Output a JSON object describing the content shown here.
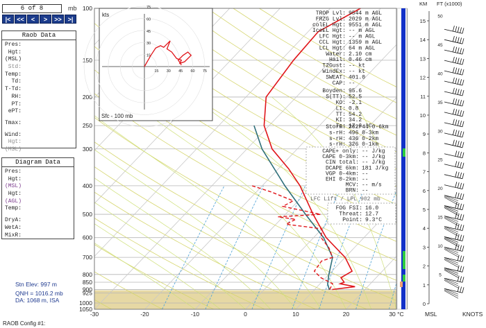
{
  "nav": {
    "page_indicator": "6 of 8",
    "unit_label": "mb",
    "buttons": [
      {
        "label": "|<"
      },
      {
        "label": "<<"
      },
      {
        "label": "<"
      },
      {
        "label": ">"
      },
      {
        "label": ">>"
      },
      {
        "label": ">|"
      }
    ]
  },
  "raob_panel": {
    "title": "Raob Data",
    "rows": [
      {
        "label": "Pres:",
        "style": "normal"
      },
      {
        "label": " Hgt:",
        "style": "normal"
      },
      {
        "label": "(MSL)",
        "style": "normal"
      },
      {
        "label": " Std:",
        "style": "gray"
      },
      {
        "label": "Temp:",
        "style": "normal"
      },
      {
        "label": "  Td:",
        "style": "normal"
      },
      {
        "label": "T-Td:",
        "style": "normal"
      },
      {
        "label": "  RH:",
        "style": "normal"
      },
      {
        "label": "  PT:",
        "style": "normal"
      },
      {
        "label": " ePT:",
        "style": "normal"
      },
      {
        "label": "",
        "style": "gap"
      },
      {
        "label": "Tmax:",
        "style": "normal"
      },
      {
        "label": "",
        "style": "gap"
      },
      {
        "label": "Wind:",
        "style": "normal"
      },
      {
        "label": " Hgt:",
        "style": "gray"
      },
      {
        "label": "(MSL)",
        "style": "gray"
      }
    ]
  },
  "diagram_panel": {
    "title": "Diagram Data",
    "rows": [
      {
        "label": "Pres:",
        "style": "normal"
      },
      {
        "label": " Hgt:",
        "style": "normal"
      },
      {
        "label": "(MSL)",
        "style": "purple"
      },
      {
        "label": " Hgt:",
        "style": "normal"
      },
      {
        "label": "(AGL)",
        "style": "purple"
      },
      {
        "label": "Temp:",
        "style": "normal"
      },
      {
        "label": "",
        "style": "gap"
      },
      {
        "label": "DryA:",
        "style": "normal"
      },
      {
        "label": "WetA:",
        "style": "normal"
      },
      {
        "label": "MixR:",
        "style": "normal"
      }
    ]
  },
  "station": {
    "elevation": "Stn Elev: 997 m",
    "qnh": "QNH = 1016.2 mb",
    "da": "DA: 1068 m, ISA"
  },
  "config_label": "RAOB Config #1:",
  "chart_data": {
    "type": "line",
    "title": "",
    "xlabel": "",
    "ylabel": "",
    "x_unit_tick": "30 °C",
    "pressure_ticks": [
      100,
      150,
      200,
      250,
      300,
      400,
      500,
      600,
      700,
      800,
      850,
      900,
      925,
      1000,
      1050
    ],
    "temperature_ticks": [
      -30,
      -20,
      -10,
      0,
      10,
      20,
      30
    ],
    "xlim": [
      -30,
      30
    ],
    "ylim": [
      1050,
      100
    ],
    "skew_note": "isotherms skewed to the right",
    "temperature_profile": {
      "name": "Temperature",
      "color": "#e0151a",
      "points": [
        [
          900,
          13.5
        ],
        [
          880,
          17.5
        ],
        [
          860,
          14.0
        ],
        [
          850,
          14.5
        ],
        [
          820,
          13.0
        ],
        [
          780,
          14.0
        ],
        [
          700,
          10.0
        ],
        [
          600,
          2.5
        ],
        [
          500,
          -4.5
        ],
        [
          400,
          -12.5
        ],
        [
          350,
          -18.0
        ],
        [
          300,
          -25.0
        ],
        [
          250,
          -31.0
        ],
        [
          200,
          -36.0
        ],
        [
          150,
          -37.5
        ],
        [
          120,
          -38.0
        ],
        [
          100,
          -34.0
        ]
      ]
    },
    "dewpoint_profile": {
      "name": "Dewpoint",
      "color": "#e0151a",
      "dashed": true,
      "points": [
        [
          900,
          13.0
        ],
        [
          860,
          12.5
        ],
        [
          820,
          9.0
        ],
        [
          780,
          6.5
        ],
        [
          720,
          6.0
        ],
        [
          700,
          7.5
        ],
        [
          650,
          5.0
        ],
        [
          600,
          1.5
        ],
        [
          560,
          0.0
        ],
        [
          540,
          -8.0
        ],
        [
          520,
          -7.0
        ],
        [
          510,
          -11.0
        ],
        [
          500,
          -3.0
        ],
        [
          470,
          -12.0
        ],
        [
          450,
          -11.0
        ],
        [
          420,
          -17.0
        ],
        [
          400,
          -22.0
        ]
      ]
    },
    "parcel_profile": {
      "name": "Parcel",
      "color": "#2f6f7a",
      "points": [
        [
          902,
          13.0
        ],
        [
          860,
          11.5
        ],
        [
          800,
          10.0
        ],
        [
          700,
          7.5
        ],
        [
          600,
          2.0
        ],
        [
          500,
          -6.0
        ],
        [
          400,
          -15.5
        ],
        [
          300,
          -27.0
        ],
        [
          250,
          -33.0
        ]
      ]
    },
    "annotations": [
      {
        "text": "m",
        "pressure": 355,
        "temp": -10,
        "color": "#e0151a"
      }
    ],
    "hodograph": {
      "unit_label": "kts",
      "footer": "Sfc - 100 mb",
      "y_ticks": [
        "75",
        "60",
        "45",
        "30",
        "15"
      ],
      "x_ticks": [
        "15",
        "30",
        "45",
        "60",
        "75"
      ],
      "trace": [
        [
          0,
          0
        ],
        [
          8,
          14
        ],
        [
          14,
          23
        ],
        [
          20,
          26
        ],
        [
          24,
          24
        ],
        [
          30,
          30
        ],
        [
          32,
          32
        ],
        [
          28,
          22
        ],
        [
          34,
          18
        ],
        [
          40,
          10
        ],
        [
          46,
          8
        ],
        [
          44,
          4
        ],
        [
          50,
          6
        ],
        [
          56,
          12
        ],
        [
          58,
          14
        ],
        [
          54,
          18
        ],
        [
          48,
          14
        ],
        [
          42,
          8
        ],
        [
          46,
          2
        ]
      ]
    },
    "indices": [
      {
        "label": "TROP Lvl:",
        "value": "9544 m AGL"
      },
      {
        "label": "FRZG Lvl:",
        "value": "2029 m AGL"
      },
      {
        "label": "colEL Hgt:",
        "value": "9551 m AGL"
      },
      {
        "label": "IceEL Hgt:",
        "value": "-- m AGL"
      },
      {
        "label": "LFC Hgt:",
        "value": "-- m AGL"
      },
      {
        "label": "CCL Hgt:",
        "value": "1359 m AGL"
      },
      {
        "label": "LCL Hgt:",
        "value": "64 m AGL"
      },
      {
        "label": "Water:",
        "value": "2.10 cm"
      },
      {
        "label": "Hail:",
        "value": "0.46 cm"
      },
      {
        "label": "T2Gust:",
        "value": "-- kt"
      },
      {
        "label": "WindEx:",
        "value": "-- kt"
      },
      {
        "label": "SWEAT:",
        "value": "401.0"
      },
      {
        "label": "CAP:",
        "value": "--"
      },
      {
        "label": "Boyden:",
        "value": "95.6"
      },
      {
        "label": "S(TT):",
        "value": "52.5"
      },
      {
        "label": "KO:",
        "value": "-2.1"
      },
      {
        "label": "LI:",
        "value": "0.8"
      },
      {
        "label": "TT:",
        "value": "54.2"
      },
      {
        "label": "KI:",
        "value": "34.2"
      },
      {
        "label": "Tc:",
        "value": "17.6 °C"
      }
    ],
    "storm_indices": [
      {
        "label": "Storm:",
        "value": "262/44 0-6km"
      },
      {
        "label": "s-rH:",
        "value": "496 0-3km"
      },
      {
        "label": "s-rH:",
        "value": "436 0-2km"
      },
      {
        "label": "s-rH:",
        "value": "326 0-1km"
      }
    ],
    "cape_indices": [
      {
        "label": "CAPE+ only:",
        "value": "-- J/kg"
      },
      {
        "label": "CAPE 0-3km:",
        "value": "-- J/kg"
      },
      {
        "label": "CIN total:",
        "value": "-- J/kg"
      },
      {
        "label": "DCAPE 6km:",
        "value": "181 J/kg"
      },
      {
        "label": "VGP 0-4km:",
        "value": "--"
      },
      {
        "label": "EHI 0-2km:",
        "value": "--"
      },
      {
        "label": "MCV:",
        "value": "-- m/s"
      },
      {
        "label": "BRN:",
        "value": "--"
      }
    ],
    "lift_label": "LFC Lift / LPL 902 mb",
    "fog": [
      {
        "label": "FOG FSI:",
        "value": "16.0"
      },
      {
        "label": "Threat:",
        "value": "12.7"
      },
      {
        "label": "Point:",
        "value": "9.3°C"
      }
    ],
    "height_scale": {
      "km_label": "KM",
      "ft_label": "FT (x1000)",
      "km_ticks": [
        0,
        1,
        2,
        3,
        4,
        5,
        6,
        7,
        8,
        9,
        10,
        11,
        12,
        13,
        14,
        15
      ],
      "ft_ticks": [
        5,
        10,
        15,
        20,
        25,
        30,
        35,
        40,
        45,
        50
      ]
    },
    "wind_profile_labels": {
      "msl": "MSL",
      "knots": "KNOTS"
    },
    "colors": {
      "isobar": "#b5b5b5",
      "isotherm": "#c8c8c8",
      "dry_adiabat": "#d6d66e",
      "moist_adiabat": "#cfe07a",
      "mixing_ratio": "#5aa8d9",
      "ground_fill": "#e6d8a4",
      "accent_blue": "#1231c8",
      "cloud_green": "#2ecc40"
    }
  }
}
